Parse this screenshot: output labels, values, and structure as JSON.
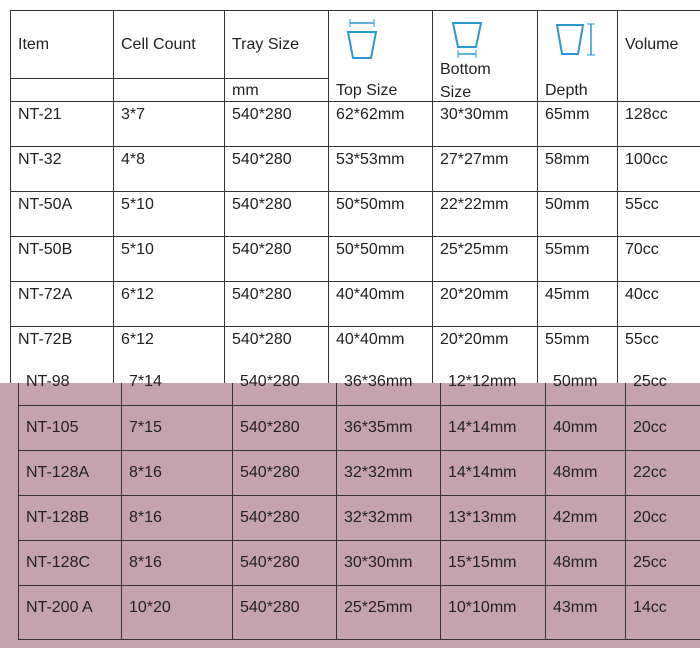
{
  "table": {
    "header": {
      "item": "Item",
      "cell_count": "Cell Count",
      "tray_size": "Tray Size",
      "tray_unit": "mm",
      "top_size": "Top Size",
      "bottom_size": "Bottom Size",
      "depth": "Depth",
      "volume": "Volume"
    },
    "rows": [
      [
        "NT-21",
        "3*7",
        "540*280",
        "62*62mm",
        "30*30mm",
        "65mm",
        "128cc"
      ],
      [
        "NT-32",
        "4*8",
        "540*280",
        "53*53mm",
        "27*27mm",
        "58mm",
        "100cc"
      ],
      [
        "NT-50A",
        "5*10",
        "540*280",
        "50*50mm",
        "22*22mm",
        "50mm",
        "55cc"
      ],
      [
        "NT-50B",
        "5*10",
        "540*280",
        "50*50mm",
        "25*25mm",
        "55mm",
        "70cc"
      ],
      [
        "NT-72A",
        "6*12",
        "540*280",
        "40*40mm",
        "20*20mm",
        "45mm",
        "40cc"
      ],
      [
        "NT-72B",
        "6*12",
        "540*280",
        "40*40mm",
        "20*20mm",
        "55mm",
        "55cc"
      ],
      [
        "NT-98",
        "7*14",
        "540*280",
        "36*36mm",
        "12*12mm",
        "50mm",
        "25cc"
      ],
      [
        "NT-105",
        "7*15",
        "540*280",
        "36*35mm",
        "14*14mm",
        "40mm",
        "20cc"
      ],
      [
        "NT-128A",
        "8*16",
        "540*280",
        "32*32mm",
        "14*14mm",
        "48mm",
        "22cc"
      ],
      [
        "NT-128B",
        "8*16",
        "540*280",
        "32*32mm",
        "13*13mm",
        "42mm",
        "20cc"
      ],
      [
        "NT-128C",
        "8*16",
        "540*280",
        "30*30mm",
        "15*15mm",
        "48mm",
        "25cc"
      ],
      [
        "NT-200 A",
        "10*20",
        "540*280",
        "25*25mm",
        "10*10mm",
        "43mm",
        "14cc"
      ]
    ]
  }
}
